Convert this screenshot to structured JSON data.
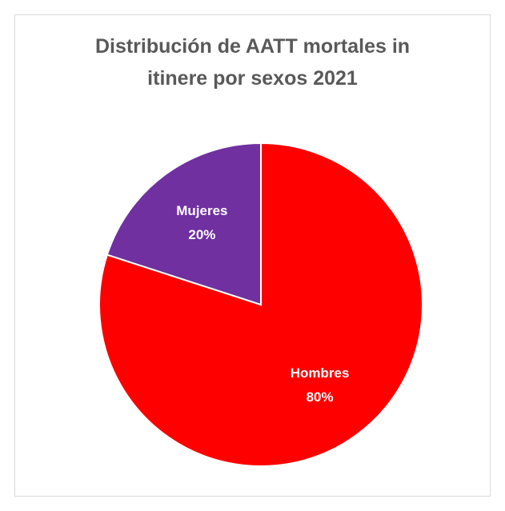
{
  "chart_data": {
    "type": "pie",
    "title": "Distribución de AATT mortales in itinere por sexos 2021",
    "categories": [
      "Hombres",
      "Mujeres"
    ],
    "values": [
      80,
      20
    ],
    "value_labels": [
      "80%",
      "20%"
    ],
    "colors": [
      "#ff0000",
      "#7030a0"
    ]
  }
}
